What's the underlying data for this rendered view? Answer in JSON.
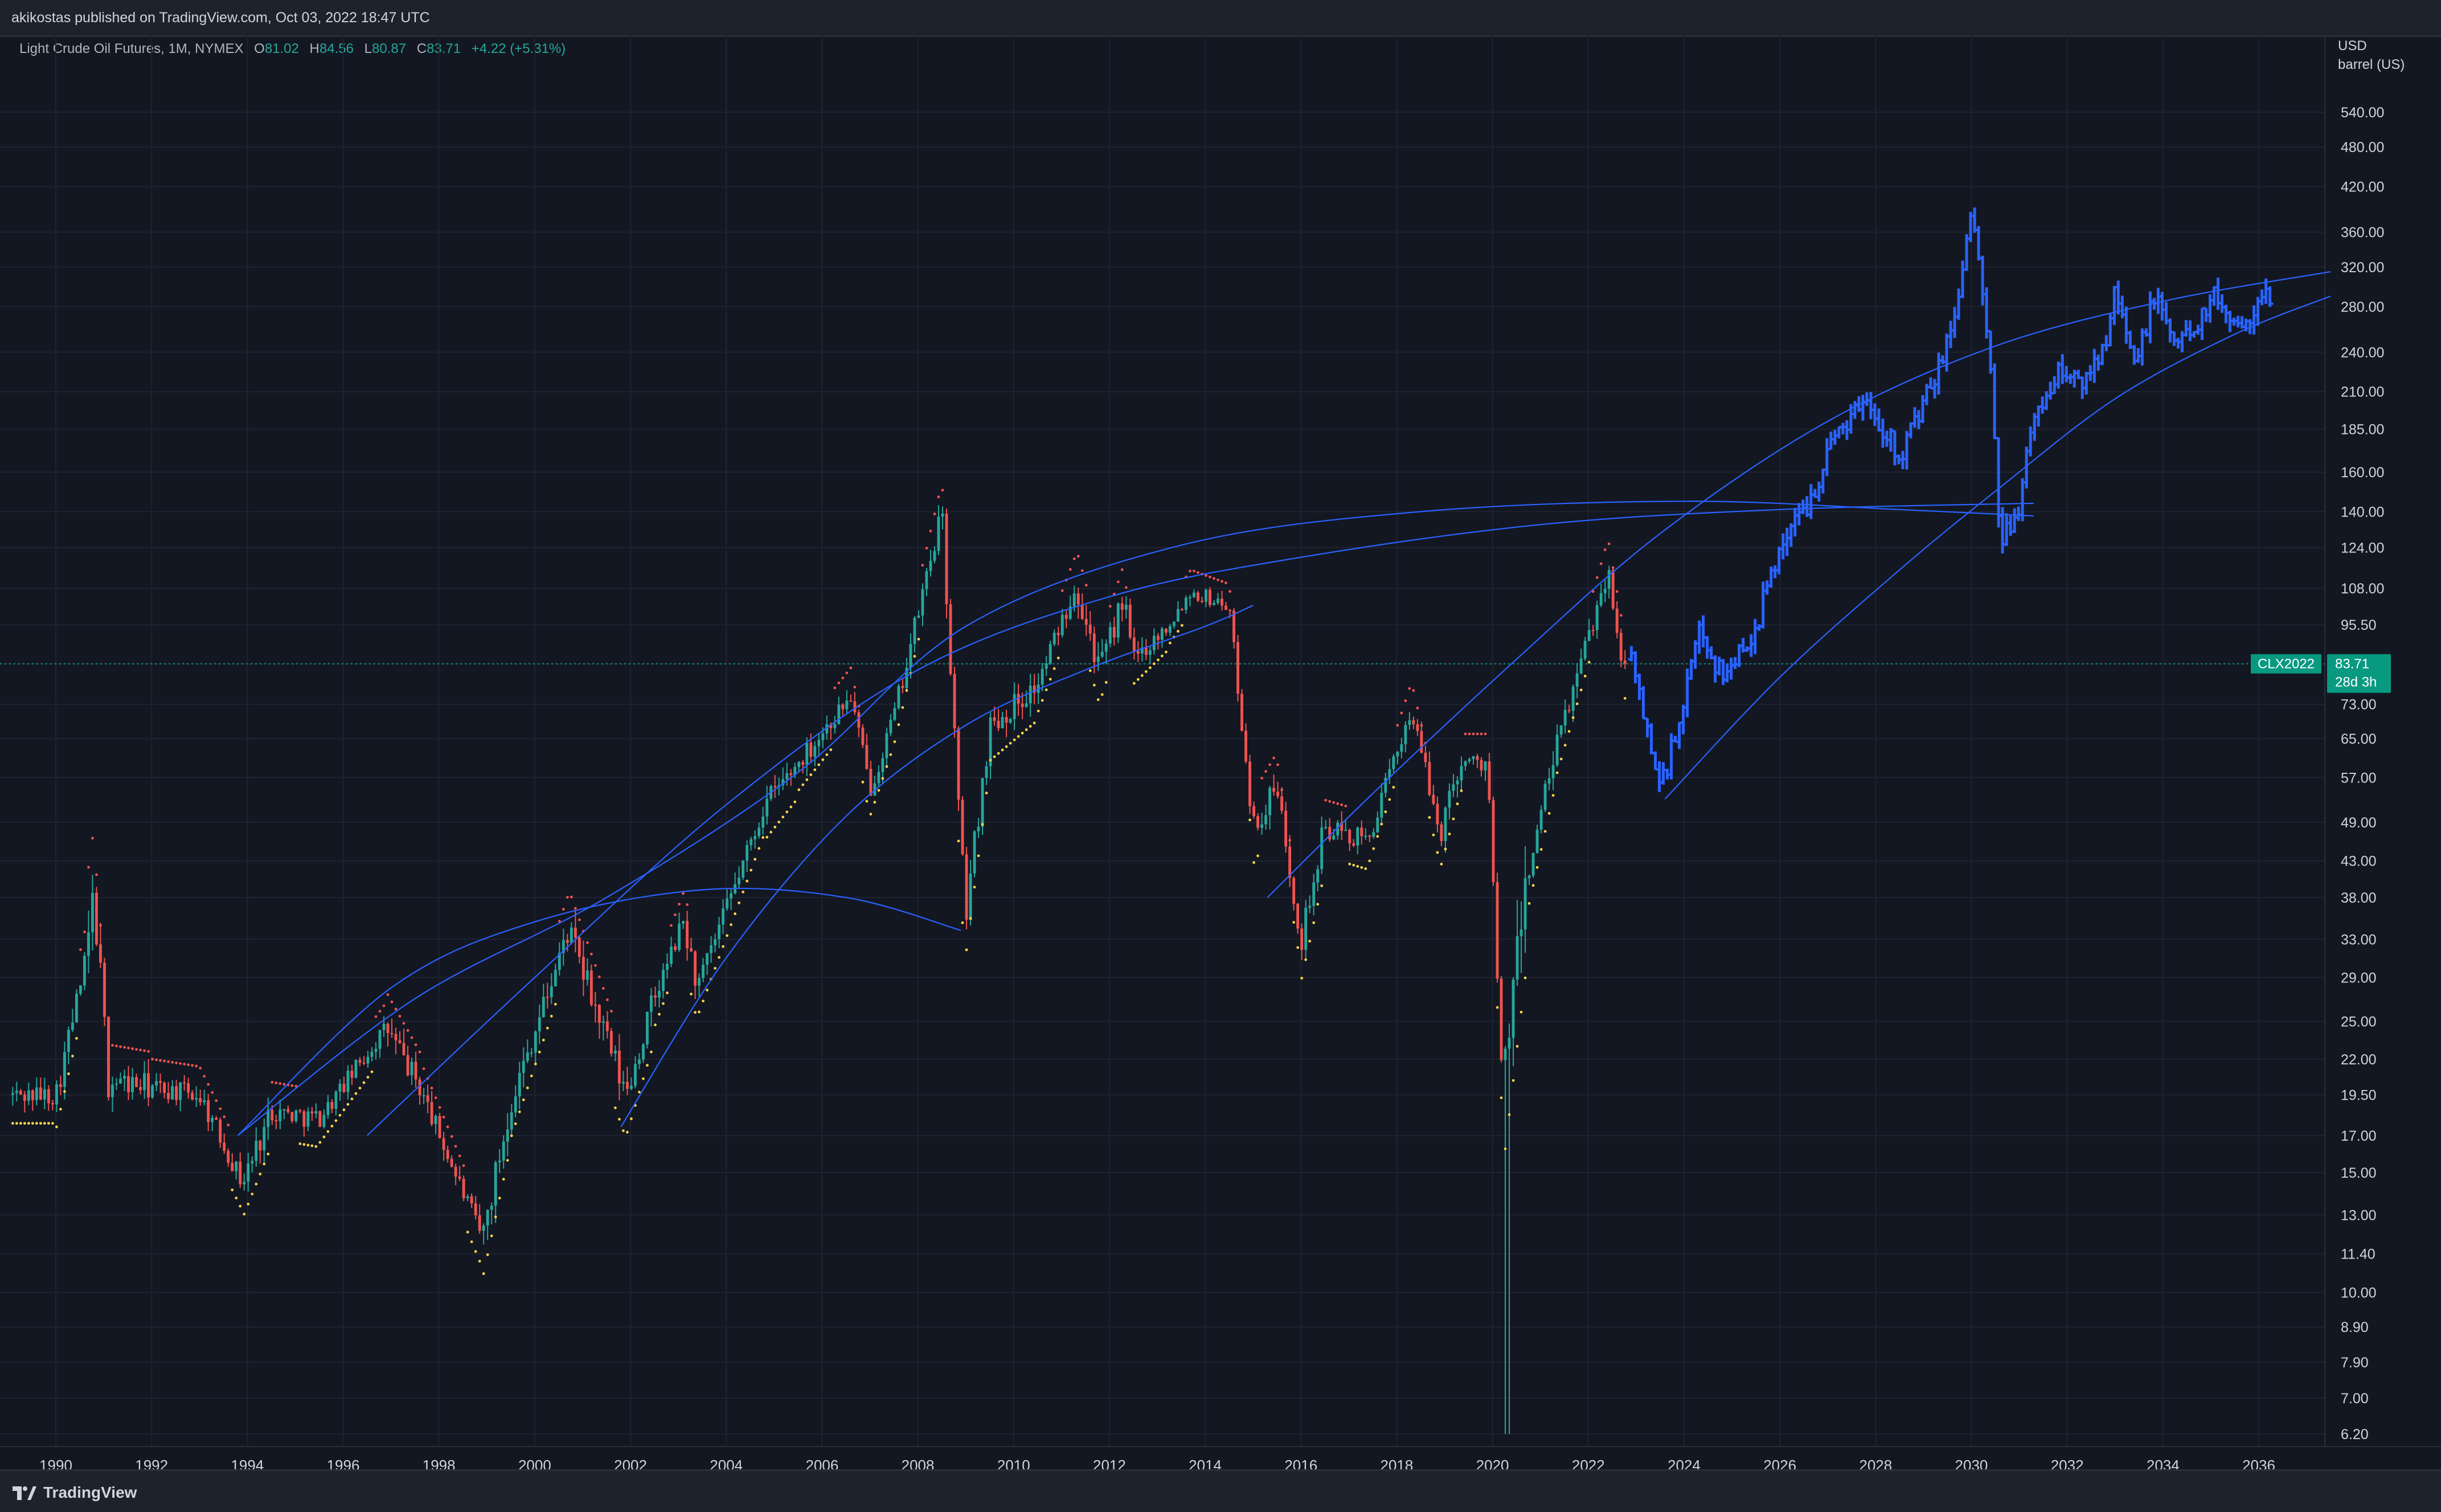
{
  "header": {
    "publish_text": "akikostas published on TradingView.com, Oct 03, 2022 18:47 UTC"
  },
  "legend": {
    "symbol": "Light Crude Oil Futures, 1M, NYMEX",
    "open_label": "O",
    "open": "81.02",
    "high_label": "H",
    "high": "84.56",
    "low_label": "L",
    "low": "80.87",
    "close_label": "C",
    "close": "83.71",
    "change": "+4.22 (+5.31%)"
  },
  "price_axis": {
    "currency": "USD",
    "unit": "barrel (US)",
    "ticks": [
      "540.00",
      "480.00",
      "420.00",
      "360.00",
      "320.00",
      "280.00",
      "240.00",
      "210.00",
      "185.00",
      "160.00",
      "140.00",
      "124.00",
      "108.00",
      "95.50",
      "83.71",
      "73.00",
      "65.00",
      "57.00",
      "49.00",
      "43.00",
      "38.00",
      "33.00",
      "29.00",
      "25.00",
      "22.00",
      "19.50",
      "17.00",
      "15.00",
      "13.00",
      "11.40",
      "10.00",
      "8.90",
      "7.90",
      "7.00",
      "6.20"
    ]
  },
  "current_price": {
    "symbol_tag": "CLX2022",
    "value": "83.71",
    "countdown": "28d 3h"
  },
  "time_axis": {
    "ticks": [
      "1990",
      "1992",
      "1994",
      "1996",
      "1998",
      "2000",
      "2002",
      "2004",
      "2006",
      "2008",
      "2010",
      "2012",
      "2014",
      "2016",
      "2018",
      "2020",
      "2022",
      "2024",
      "2026",
      "2028",
      "2030",
      "2032",
      "2034",
      "2036"
    ]
  },
  "footer": {
    "brand": "TradingView"
  },
  "colors": {
    "background": "#131722",
    "up": "#26a69a",
    "down": "#ef5350",
    "projection": "#2962ff",
    "arc": "#2962ff",
    "sar_up": "#f5d34a",
    "sar_down": "#ef5350",
    "grid": "#1f2330",
    "price_line": "#089981"
  },
  "chart_data": {
    "type": "candlestick",
    "scale": "log",
    "x_unit": "year",
    "xlim": [
      1989.1,
      2037.2
    ],
    "ylim": [
      6.2,
      600
    ],
    "anchors": [
      [
        1990.0,
        19.5,
        0.1
      ],
      [
        1990.6,
        30.0,
        0.2
      ],
      [
        1990.8,
        38.0,
        0.15
      ],
      [
        1991.1,
        20.5,
        0.1
      ],
      [
        1992.0,
        20.0,
        0.08
      ],
      [
        1993.0,
        19.5,
        0.08
      ],
      [
        1993.9,
        14.5,
        0.1
      ],
      [
        1994.5,
        18.5,
        0.08
      ],
      [
        1995.5,
        18.0,
        0.07
      ],
      [
        1996.9,
        24.5,
        0.1
      ],
      [
        1997.6,
        20.0,
        0.08
      ],
      [
        1998.9,
        12.0,
        0.12
      ],
      [
        1999.5,
        19.0,
        0.1
      ],
      [
        2000.7,
        34.0,
        0.12
      ],
      [
        2001.9,
        19.5,
        0.12
      ],
      [
        2002.5,
        27.0,
        0.08
      ],
      [
        2003.1,
        35.0,
        0.1
      ],
      [
        2003.4,
        28.0,
        0.08
      ],
      [
        2004.8,
        52.0,
        0.1
      ],
      [
        2005.5,
        60.0,
        0.08
      ],
      [
        2006.6,
        75.0,
        0.08
      ],
      [
        2007.0,
        55.0,
        0.08
      ],
      [
        2007.5,
        70.0,
        0.08
      ],
      [
        2008.5,
        140.0,
        0.1
      ],
      [
        2008.9,
        45.0,
        0.15
      ],
      [
        2009.0,
        36.0,
        0.12
      ],
      [
        2009.5,
        68.0,
        0.1
      ],
      [
        2010.5,
        78.0,
        0.08
      ],
      [
        2011.3,
        110.0,
        0.1
      ],
      [
        2011.8,
        82.0,
        0.09
      ],
      [
        2012.3,
        105.0,
        0.07
      ],
      [
        2012.5,
        85.0,
        0.07
      ],
      [
        2013.2,
        95.0,
        0.06
      ],
      [
        2013.7,
        107.0,
        0.06
      ],
      [
        2014.5,
        102.0,
        0.06
      ],
      [
        2015.0,
        48.0,
        0.1
      ],
      [
        2015.5,
        55.0,
        0.08
      ],
      [
        2016.0,
        33.0,
        0.12
      ],
      [
        2016.5,
        48.0,
        0.08
      ],
      [
        2017.4,
        46.0,
        0.07
      ],
      [
        2018.3,
        72.0,
        0.08
      ],
      [
        2018.9,
        47.0,
        0.1
      ],
      [
        2019.3,
        60.0,
        0.08
      ],
      [
        2019.9,
        60.0,
        0.08
      ],
      [
        2020.2,
        20.0,
        0.25
      ],
      [
        2020.7,
        40.0,
        0.1
      ],
      [
        2021.3,
        62.0,
        0.08
      ],
      [
        2021.8,
        82.0,
        0.08
      ],
      [
        2022.4,
        115.0,
        0.1
      ],
      [
        2022.75,
        82.0,
        0.06
      ]
    ],
    "current_price": 83.71,
    "projection": {
      "style": "bars",
      "anchors": [
        [
          2022.9,
          85
        ],
        [
          2023.5,
          55
        ],
        [
          2024.0,
          72
        ],
        [
          2024.3,
          95
        ],
        [
          2024.8,
          80
        ],
        [
          2025.5,
          95
        ],
        [
          2026.0,
          125
        ],
        [
          2026.6,
          145
        ],
        [
          2027.2,
          185
        ],
        [
          2027.8,
          205
        ],
        [
          2028.5,
          170
        ],
        [
          2029.2,
          215
        ],
        [
          2029.6,
          260
        ],
        [
          2030.0,
          390
        ],
        [
          2030.35,
          250
        ],
        [
          2030.6,
          125
        ],
        [
          2031.0,
          145
        ],
        [
          2031.3,
          190
        ],
        [
          2031.8,
          225
        ],
        [
          2032.3,
          215
        ],
        [
          2032.8,
          250
        ],
        [
          2033.0,
          310
        ],
        [
          2033.4,
          225
        ],
        [
          2033.8,
          290
        ],
        [
          2034.3,
          245
        ],
        [
          2035.1,
          290
        ],
        [
          2035.5,
          265
        ],
        [
          2036.0,
          280
        ],
        [
          2036.2,
          290
        ]
      ]
    },
    "arcs": [
      {
        "name": "arc-1",
        "points": [
          [
            1993.8,
            17.0
          ],
          [
            1997.5,
            27.0
          ],
          [
            2001.5,
            38.0
          ],
          [
            2005.5,
            58.0
          ],
          [
            2009.0,
            95.0
          ],
          [
            2013.5,
            125.0
          ],
          [
            2018.5,
            140.0
          ],
          [
            2024.0,
            145.0
          ],
          [
            2028.5,
            141.0
          ],
          [
            2031.3,
            138.0
          ]
        ]
      },
      {
        "name": "arc-2",
        "points": [
          [
            1996.5,
            17.0
          ],
          [
            2000.0,
            29.0
          ],
          [
            2004.0,
            52.0
          ],
          [
            2008.0,
            82.0
          ],
          [
            2012.0,
            105.0
          ],
          [
            2016.0,
            120.0
          ],
          [
            2021.0,
            134.0
          ],
          [
            2026.0,
            141.0
          ],
          [
            2031.3,
            144.0
          ]
        ]
      },
      {
        "name": "arc-3",
        "points": [
          [
            1993.8,
            17.0
          ],
          [
            1997.0,
            28.0
          ],
          [
            2000.0,
            35.0
          ],
          [
            2003.5,
            39.0
          ],
          [
            2006.5,
            38.0
          ],
          [
            2008.9,
            34.0
          ]
        ]
      },
      {
        "name": "arc-4",
        "points": [
          [
            2001.8,
            17.5
          ],
          [
            2004.0,
            31.0
          ],
          [
            2006.5,
            50.0
          ],
          [
            2009.0,
            68.0
          ],
          [
            2011.5,
            82.0
          ],
          [
            2014.0,
            95.0
          ],
          [
            2015.0,
            102.0
          ]
        ]
      },
      {
        "name": "arc-5",
        "points": [
          [
            2015.3,
            38.0
          ],
          [
            2017.5,
            54.0
          ],
          [
            2020.5,
            85.0
          ],
          [
            2023.5,
            130.0
          ],
          [
            2027.0,
            190.0
          ],
          [
            2030.5,
            245.0
          ],
          [
            2034.0,
            285.0
          ],
          [
            2037.5,
            315.0
          ]
        ]
      },
      {
        "name": "arc-6",
        "points": [
          [
            2023.6,
            53.0
          ],
          [
            2026.0,
            80.0
          ],
          [
            2028.5,
            115.0
          ],
          [
            2030.5,
            150.0
          ],
          [
            2033.0,
            205.0
          ],
          [
            2035.5,
            255.0
          ],
          [
            2037.5,
            290.0
          ]
        ]
      }
    ]
  }
}
